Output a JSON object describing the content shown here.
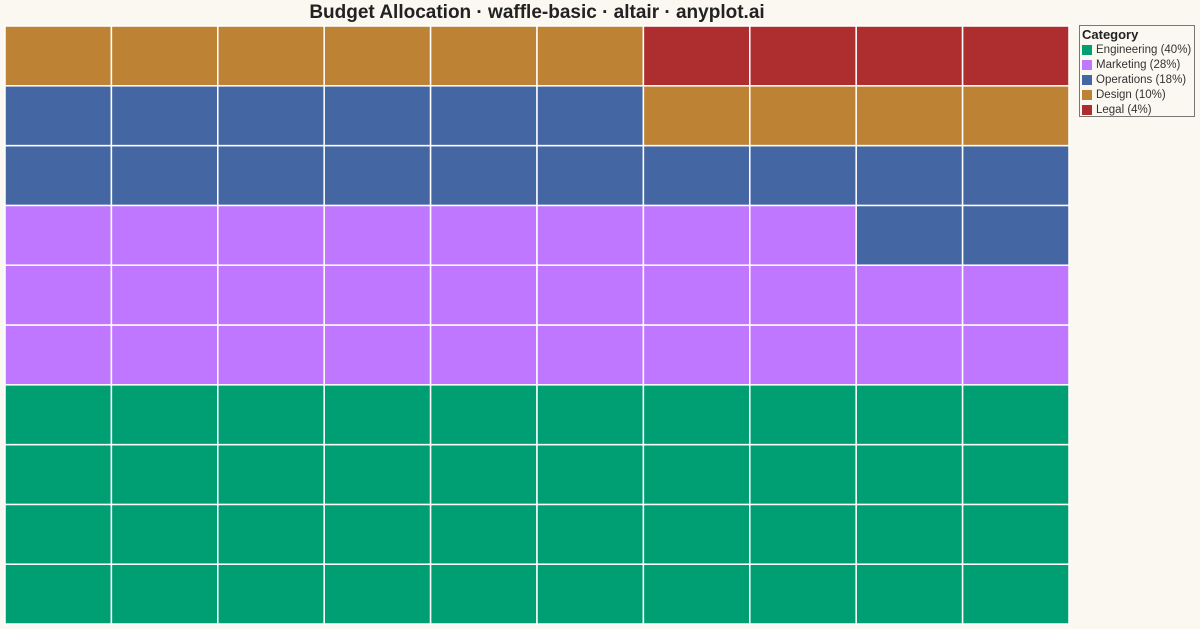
{
  "chart_data": {
    "type": "waffle",
    "title": "Budget Allocation · waffle-basic · altair · anyplot.ai",
    "grid": {
      "rows": 10,
      "cols": 10
    },
    "legend": {
      "title": "Category",
      "position": "top-right"
    },
    "categories": [
      {
        "label": "Engineering (40%)",
        "value": 40,
        "color": "#009E73"
      },
      {
        "label": "Marketing (28%)",
        "value": 28,
        "color": "#C077FF"
      },
      {
        "label": "Operations (18%)",
        "value": 18,
        "color": "#4467A3"
      },
      {
        "label": "Design (10%)",
        "value": 10,
        "color": "#BE8234"
      },
      {
        "label": "Legal (4%)",
        "value": 4,
        "color": "#AE2E30"
      }
    ]
  }
}
